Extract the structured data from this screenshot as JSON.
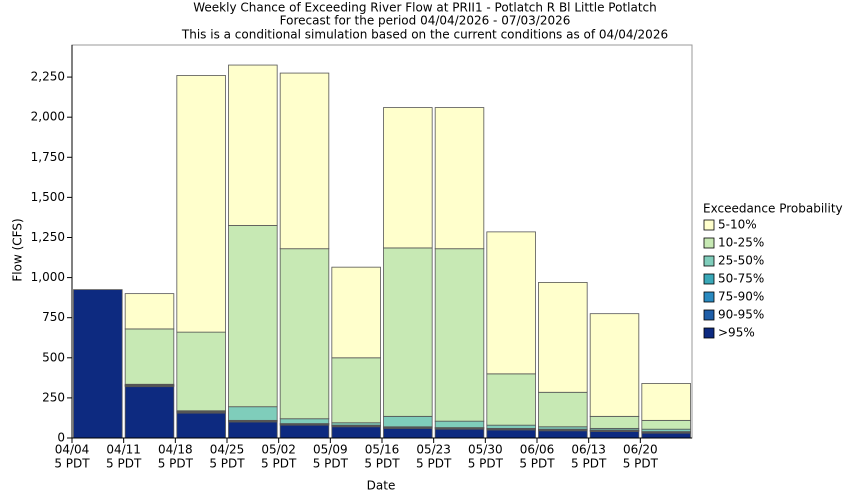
{
  "chart_data": {
    "type": "stacked_bar",
    "title": "Weekly Chance of Exceeding River Flow at PRII1 - Potlatch R Bl Little Potlatch",
    "subtitles": [
      "Forecast for the period 04/04/2026 - 07/03/2026",
      "This is a conditional simulation based on the current conditions as of 04/04/2026"
    ],
    "x_label": "Date",
    "y_label": "Flow (CFS)",
    "legend_title": "Exceedance Probability",
    "categories": [
      [
        "04/04",
        "5 PDT"
      ],
      [
        "04/11",
        "5 PDT"
      ],
      [
        "04/18",
        "5 PDT"
      ],
      [
        "04/25",
        "5 PDT"
      ],
      [
        "05/02",
        "5 PDT"
      ],
      [
        "05/09",
        "5 PDT"
      ],
      [
        "05/16",
        "5 PDT"
      ],
      [
        "05/23",
        "5 PDT"
      ],
      [
        "05/30",
        "5 PDT"
      ],
      [
        "06/06",
        "5 PDT"
      ],
      [
        "06/13",
        "5 PDT"
      ],
      [
        "06/20",
        "5 PDT"
      ]
    ],
    "series": [
      {
        "name": ">95%",
        "color": "#0d2a80",
        "values": [
          925,
          320,
          155,
          100,
          80,
          70,
          60,
          55,
          50,
          45,
          40,
          30
        ]
      },
      {
        "name": "90-95%",
        "color": "#1f5ea8",
        "values": [
          0,
          5,
          5,
          5,
          5,
          5,
          5,
          5,
          5,
          5,
          5,
          5
        ]
      },
      {
        "name": "75-90%",
        "color": "#2a8ac0",
        "values": [
          0,
          3,
          3,
          3,
          3,
          3,
          3,
          3,
          3,
          3,
          3,
          3
        ]
      },
      {
        "name": "50-75%",
        "color": "#3aa8b8",
        "values": [
          0,
          2,
          2,
          2,
          2,
          2,
          2,
          2,
          2,
          2,
          2,
          2
        ]
      },
      {
        "name": "25-50%",
        "color": "#7fcdbb",
        "values": [
          0,
          5,
          5,
          85,
          30,
          15,
          65,
          40,
          20,
          15,
          10,
          15
        ]
      },
      {
        "name": "10-25%",
        "color": "#c7e9b4",
        "values": [
          0,
          345,
          490,
          1130,
          1060,
          405,
          1050,
          1075,
          320,
          215,
          75,
          55
        ]
      },
      {
        "name": "5-10%",
        "color": "#ffffcc",
        "values": [
          0,
          220,
          1600,
          1000,
          1095,
          565,
          875,
          880,
          885,
          685,
          640,
          230
        ]
      }
    ],
    "ylim": [
      0,
      2450
    ],
    "yticks": [
      0,
      250,
      500,
      750,
      {
        "value": 1000,
        "label": "1,000"
      },
      {
        "value": 1250,
        "label": "1,250"
      },
      {
        "value": 1500,
        "label": "1,500"
      },
      {
        "value": 1750,
        "label": "1,750"
      },
      {
        "value": 2000,
        "label": "2,000"
      },
      {
        "value": 2250,
        "label": "2,250"
      }
    ]
  }
}
